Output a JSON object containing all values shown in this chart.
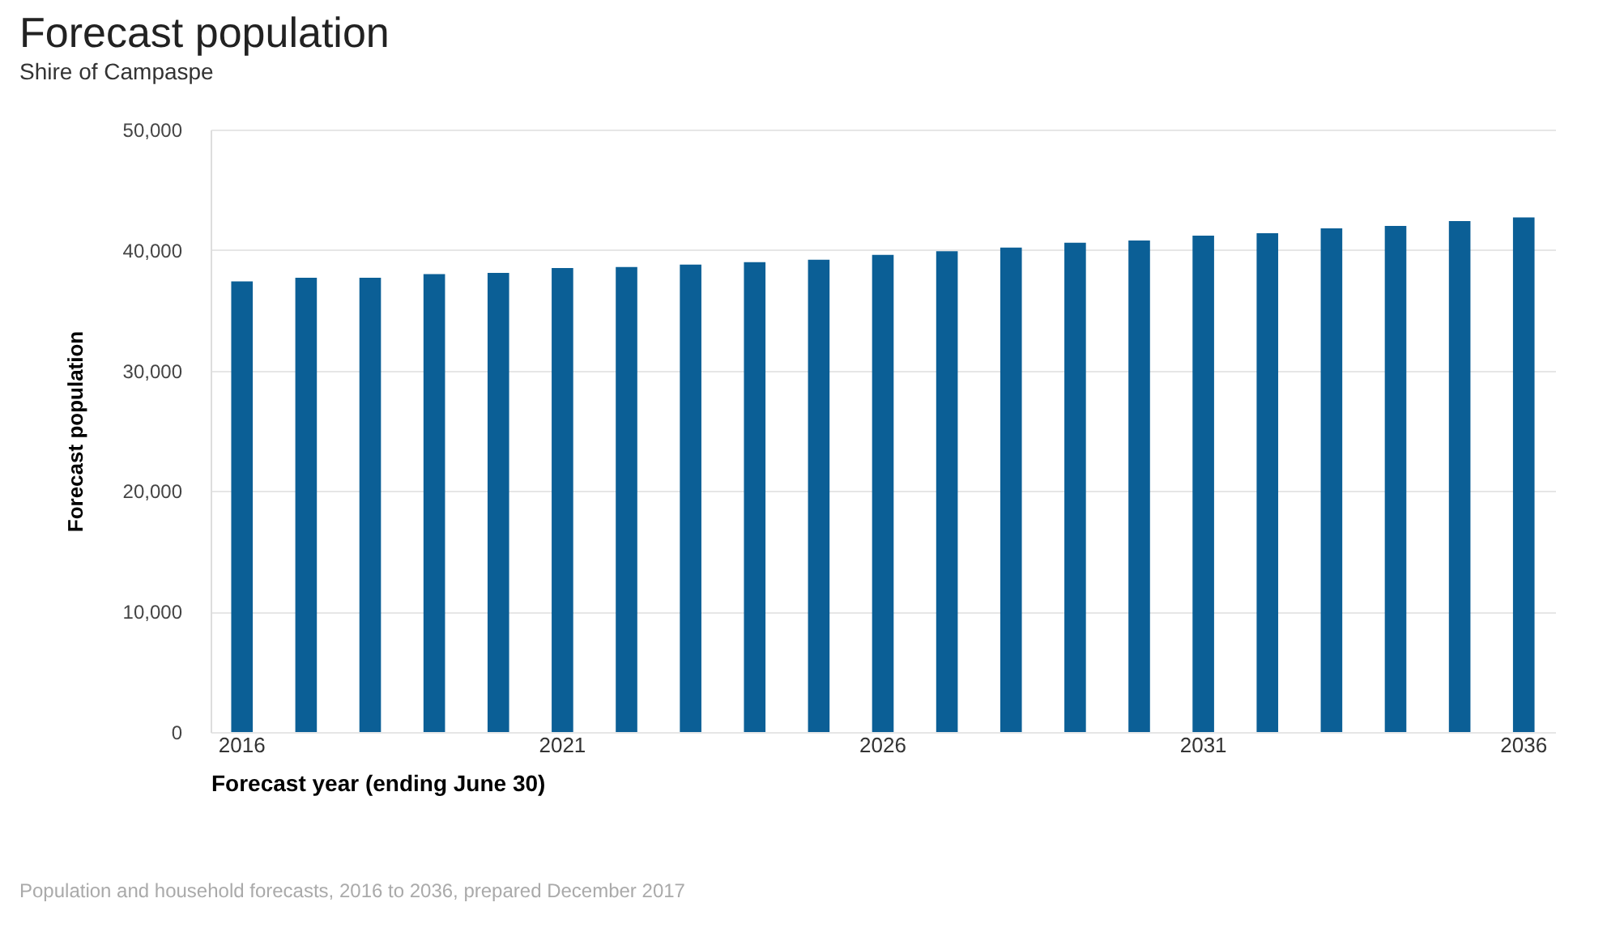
{
  "chart_data": {
    "type": "bar",
    "title": "Forecast population",
    "subtitle": "Shire of Campaspe",
    "xlabel": "Forecast year (ending June 30)",
    "ylabel": "Forecast population",
    "categories": [
      "2016",
      null,
      null,
      null,
      null,
      "2021",
      null,
      null,
      null,
      null,
      "2026",
      null,
      null,
      null,
      null,
      "2031",
      null,
      null,
      null,
      null,
      "2036"
    ],
    "values": [
      37400,
      37700,
      37700,
      38000,
      38100,
      38500,
      38600,
      38800,
      39000,
      39200,
      39600,
      39900,
      40200,
      40600,
      40800,
      41200,
      41400,
      41800,
      42000,
      42400,
      42700
    ],
    "color": "#0b5f96",
    "ylim": [
      0,
      50000
    ],
    "yticks": [
      {
        "value": 0,
        "label": "0"
      },
      {
        "value": 10000,
        "label": "10,000"
      },
      {
        "value": 20000,
        "label": "20,000"
      },
      {
        "value": 30000,
        "label": "30,000"
      },
      {
        "value": 40000,
        "label": "40,000"
      },
      {
        "value": 50000,
        "label": "50,000"
      }
    ],
    "grid": "y",
    "annotations": [
      "Population and household forecasts, 2016 to 2036, prepared December 2017"
    ]
  }
}
